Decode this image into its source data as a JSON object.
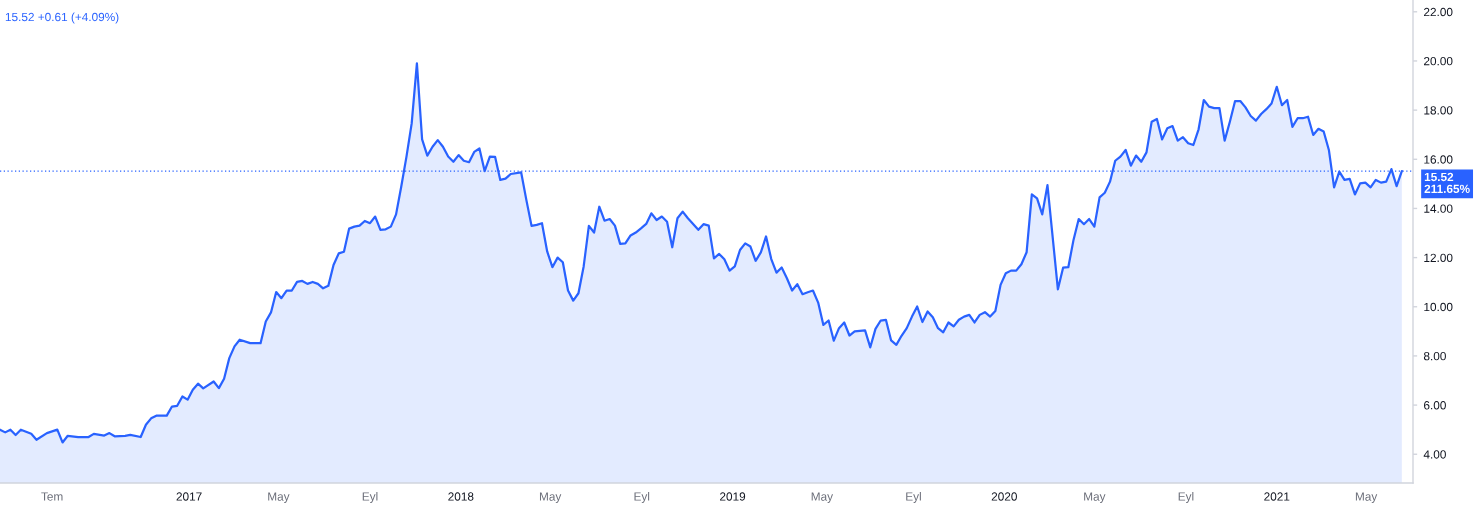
{
  "chart_data": {
    "type": "area",
    "title": "15.52 +0.61 (+4.09%)",
    "x": [
      "2016-04-22",
      "2016-04-29",
      "2016-05-06",
      "2016-05-13",
      "2016-05-20",
      "2016-06-03",
      "2016-06-10",
      "2016-06-24",
      "2016-07-08",
      "2016-07-15",
      "2016-07-22",
      "2016-08-05",
      "2016-08-19",
      "2016-08-26",
      "2016-09-09",
      "2016-09-16",
      "2016-09-23",
      "2016-10-07",
      "2016-10-14",
      "2016-10-28",
      "2016-11-04",
      "2016-11-11",
      "2016-11-18",
      "2016-12-02",
      "2016-12-09",
      "2016-12-16",
      "2016-12-23",
      "2016-12-30",
      "2017-01-06",
      "2017-01-13",
      "2017-01-20",
      "2017-02-03",
      "2017-02-10",
      "2017-02-17",
      "2017-02-24",
      "2017-03-03",
      "2017-03-10",
      "2017-03-24",
      "2017-04-07",
      "2017-04-14",
      "2017-04-21",
      "2017-04-28",
      "2017-05-05",
      "2017-05-12",
      "2017-05-19",
      "2017-05-26",
      "2017-06-02",
      "2017-06-09",
      "2017-06-16",
      "2017-06-23",
      "2017-06-30",
      "2017-07-07",
      "2017-07-14",
      "2017-07-21",
      "2017-07-28",
      "2017-08-04",
      "2017-08-11",
      "2017-08-18",
      "2017-08-25",
      "2017-09-01",
      "2017-09-08",
      "2017-09-15",
      "2017-09-22",
      "2017-09-29",
      "2017-10-06",
      "2017-10-13",
      "2017-10-20",
      "2017-10-27",
      "2017-11-03",
      "2017-11-10",
      "2017-11-17",
      "2017-11-24",
      "2017-12-01",
      "2017-12-08",
      "2017-12-15",
      "2017-12-22",
      "2017-12-29",
      "2018-01-05",
      "2018-01-12",
      "2018-01-19",
      "2018-01-26",
      "2018-02-02",
      "2018-02-09",
      "2018-02-16",
      "2018-02-23",
      "2018-03-02",
      "2018-03-09",
      "2018-03-23",
      "2018-03-30",
      "2018-04-06",
      "2018-04-13",
      "2018-04-20",
      "2018-04-27",
      "2018-05-04",
      "2018-05-11",
      "2018-05-18",
      "2018-05-25",
      "2018-06-01",
      "2018-06-08",
      "2018-06-15",
      "2018-06-22",
      "2018-06-29",
      "2018-07-06",
      "2018-07-13",
      "2018-07-20",
      "2018-07-27",
      "2018-08-03",
      "2018-08-10",
      "2018-08-17",
      "2018-08-24",
      "2018-08-31",
      "2018-09-07",
      "2018-09-14",
      "2018-09-21",
      "2018-09-28",
      "2018-10-05",
      "2018-10-12",
      "2018-10-19",
      "2018-10-26",
      "2018-11-02",
      "2018-11-16",
      "2018-11-23",
      "2018-11-30",
      "2018-12-07",
      "2018-12-14",
      "2018-12-21",
      "2018-12-28",
      "2019-01-04",
      "2019-01-11",
      "2019-01-18",
      "2019-01-25",
      "2019-02-01",
      "2019-02-08",
      "2019-02-15",
      "2019-02-22",
      "2019-03-01",
      "2019-03-08",
      "2019-03-15",
      "2019-03-22",
      "2019-03-29",
      "2019-04-05",
      "2019-04-12",
      "2019-04-19",
      "2019-04-26",
      "2019-05-03",
      "2019-05-10",
      "2019-05-17",
      "2019-05-24",
      "2019-05-31",
      "2019-06-07",
      "2019-06-14",
      "2019-06-28",
      "2019-07-05",
      "2019-07-12",
      "2019-07-19",
      "2019-07-26",
      "2019-08-02",
      "2019-08-09",
      "2019-08-16",
      "2019-08-23",
      "2019-08-30",
      "2019-09-06",
      "2019-09-13",
      "2019-09-20",
      "2019-09-27",
      "2019-10-04",
      "2019-10-11",
      "2019-10-18",
      "2019-10-25",
      "2019-11-01",
      "2019-11-08",
      "2019-11-15",
      "2019-11-22",
      "2019-11-29",
      "2019-12-06",
      "2019-12-13",
      "2019-12-20",
      "2019-12-27",
      "2020-01-03",
      "2020-01-10",
      "2020-01-17",
      "2020-01-24",
      "2020-01-31",
      "2020-02-07",
      "2020-02-14",
      "2020-02-21",
      "2020-02-28",
      "2020-03-13",
      "2020-03-20",
      "2020-03-27",
      "2020-04-03",
      "2020-04-10",
      "2020-04-17",
      "2020-04-24",
      "2020-05-01",
      "2020-05-08",
      "2020-05-15",
      "2020-05-22",
      "2020-05-29",
      "2020-06-05",
      "2020-06-12",
      "2020-06-19",
      "2020-06-26",
      "2020-07-03",
      "2020-07-10",
      "2020-07-17",
      "2020-07-24",
      "2020-07-31",
      "2020-08-07",
      "2020-08-14",
      "2020-08-21",
      "2020-08-28",
      "2020-09-04",
      "2020-09-11",
      "2020-09-18",
      "2020-09-25",
      "2020-10-02",
      "2020-10-09",
      "2020-10-16",
      "2020-10-23",
      "2020-10-30",
      "2020-11-06",
      "2020-11-13",
      "2020-11-20",
      "2020-11-27",
      "2020-12-04",
      "2020-12-11",
      "2020-12-18",
      "2020-12-25",
      "2021-01-01",
      "2021-01-08",
      "2021-01-15",
      "2021-01-22",
      "2021-01-29",
      "2021-02-05",
      "2021-02-12",
      "2021-02-19",
      "2021-02-26",
      "2021-03-05",
      "2021-03-12",
      "2021-03-19",
      "2021-03-26",
      "2021-04-02",
      "2021-04-09",
      "2021-04-16",
      "2021-04-23",
      "2021-04-30",
      "2021-05-07",
      "2021-05-14",
      "2021-05-21",
      "2021-05-28",
      "2021-06-04",
      "2021-06-11",
      "2021-06-18"
    ],
    "series": [
      {
        "color": "#2962ff",
        "values": [
          5.0,
          4.89,
          5.0,
          4.78,
          5.0,
          4.83,
          4.59,
          4.86,
          5.0,
          4.48,
          4.75,
          4.7,
          4.7,
          4.83,
          4.76,
          4.86,
          4.73,
          4.75,
          4.79,
          4.7,
          5.2,
          5.46,
          5.57,
          5.57,
          5.94,
          5.97,
          6.35,
          6.22,
          6.62,
          6.87,
          6.68,
          6.96,
          6.69,
          7.07,
          7.91,
          8.39,
          8.66,
          8.52,
          8.52,
          9.4,
          9.77,
          10.6,
          10.35,
          10.66,
          10.66,
          11.01,
          11.05,
          10.93,
          11.01,
          10.93,
          10.75,
          10.85,
          11.7,
          12.17,
          12.24,
          13.18,
          13.26,
          13.3,
          13.49,
          13.4,
          13.67,
          13.13,
          13.15,
          13.26,
          13.76,
          14.89,
          16.11,
          17.46,
          19.9,
          16.81,
          16.15,
          16.51,
          16.78,
          16.51,
          16.11,
          15.9,
          16.17,
          15.94,
          15.88,
          16.3,
          16.44,
          15.52,
          16.11,
          16.1,
          15.16,
          15.21,
          15.4,
          15.47,
          14.35,
          13.29,
          13.33,
          13.4,
          12.25,
          11.61,
          12.0,
          11.81,
          10.66,
          10.25,
          10.55,
          11.64,
          13.29,
          13.02,
          14.07,
          13.5,
          13.57,
          13.3,
          12.56,
          12.58,
          12.9,
          13.02,
          13.19,
          13.37,
          13.8,
          13.53,
          13.67,
          13.46,
          12.42,
          13.6,
          13.87,
          13.6,
          13.13,
          13.36,
          13.3,
          11.97,
          12.15,
          11.93,
          11.47,
          11.64,
          12.31,
          12.58,
          12.45,
          11.87,
          12.21,
          12.86,
          11.94,
          11.39,
          11.6,
          11.16,
          10.66,
          10.92,
          10.51,
          10.59,
          10.66,
          10.17,
          9.26,
          9.44,
          8.62,
          9.13,
          9.36,
          8.83,
          9.0,
          9.04,
          8.35,
          9.1,
          9.44,
          9.47,
          8.63,
          8.45,
          8.82,
          9.13,
          9.6,
          10.01,
          9.38,
          9.81,
          9.57,
          9.13,
          8.96,
          9.36,
          9.2,
          9.47,
          9.6,
          9.67,
          9.36,
          9.67,
          9.78,
          9.6,
          9.83,
          10.89,
          11.36,
          11.47,
          11.47,
          11.73,
          12.22,
          14.57,
          14.41,
          13.76,
          14.95,
          10.71,
          11.59,
          11.61,
          12.72,
          13.57,
          13.36,
          13.57,
          13.26,
          14.45,
          14.64,
          15.09,
          15.94,
          16.11,
          16.38,
          15.74,
          16.15,
          15.9,
          16.28,
          17.53,
          17.64,
          16.81,
          17.26,
          17.35,
          16.76,
          16.9,
          16.65,
          16.58,
          17.22,
          18.41,
          18.14,
          18.08,
          18.08,
          16.76,
          17.53,
          18.37,
          18.37,
          18.11,
          17.76,
          17.57,
          17.84,
          18.04,
          18.27,
          18.95,
          18.2,
          18.41,
          17.32,
          17.67,
          17.67,
          17.73,
          16.99,
          17.24,
          17.13,
          16.38,
          14.86,
          15.5,
          15.16,
          15.2,
          14.57,
          15.02,
          15.05,
          14.86,
          15.16,
          15.05,
          15.09,
          15.6,
          14.91,
          15.52
        ]
      }
    ],
    "xlim": [
      "2016-04-22",
      "2021-07-03"
    ],
    "xticks": [
      {
        "value": "2016-07-01",
        "label": "Tem"
      },
      {
        "value": "2017-01-01",
        "label": "2017"
      },
      {
        "value": "2017-05-01",
        "label": "May"
      },
      {
        "value": "2017-09-01",
        "label": "Eyl"
      },
      {
        "value": "2018-01-01",
        "label": "2018"
      },
      {
        "value": "2018-05-01",
        "label": "May"
      },
      {
        "value": "2018-09-01",
        "label": "Eyl"
      },
      {
        "value": "2019-01-01",
        "label": "2019"
      },
      {
        "value": "2019-05-01",
        "label": "May"
      },
      {
        "value": "2019-09-01",
        "label": "Eyl"
      },
      {
        "value": "2020-01-01",
        "label": "2020"
      },
      {
        "value": "2020-05-01",
        "label": "May"
      },
      {
        "value": "2020-09-01",
        "label": "Eyl"
      },
      {
        "value": "2021-01-01",
        "label": "2021"
      },
      {
        "value": "2021-05-01",
        "label": "May"
      }
    ],
    "ylim": [
      2.83,
      22.48
    ],
    "yticks": [
      {
        "value": 4,
        "label": "4.00"
      },
      {
        "value": 6,
        "label": "6.00"
      },
      {
        "value": 8,
        "label": "8.00"
      },
      {
        "value": 10,
        "label": "10.00"
      },
      {
        "value": 12,
        "label": "12.00"
      },
      {
        "value": 14,
        "label": "14.00"
      },
      {
        "value": 16,
        "label": "16.00"
      },
      {
        "value": 18,
        "label": "18.00"
      },
      {
        "value": 20,
        "label": "20.00"
      },
      {
        "value": 22,
        "label": "22.00"
      }
    ],
    "ref_lines": [
      {
        "axis": "y",
        "value": 15.52,
        "label": "15.52\n211.65%",
        "color": "#2962ff",
        "line_style": "dotted"
      }
    ]
  }
}
